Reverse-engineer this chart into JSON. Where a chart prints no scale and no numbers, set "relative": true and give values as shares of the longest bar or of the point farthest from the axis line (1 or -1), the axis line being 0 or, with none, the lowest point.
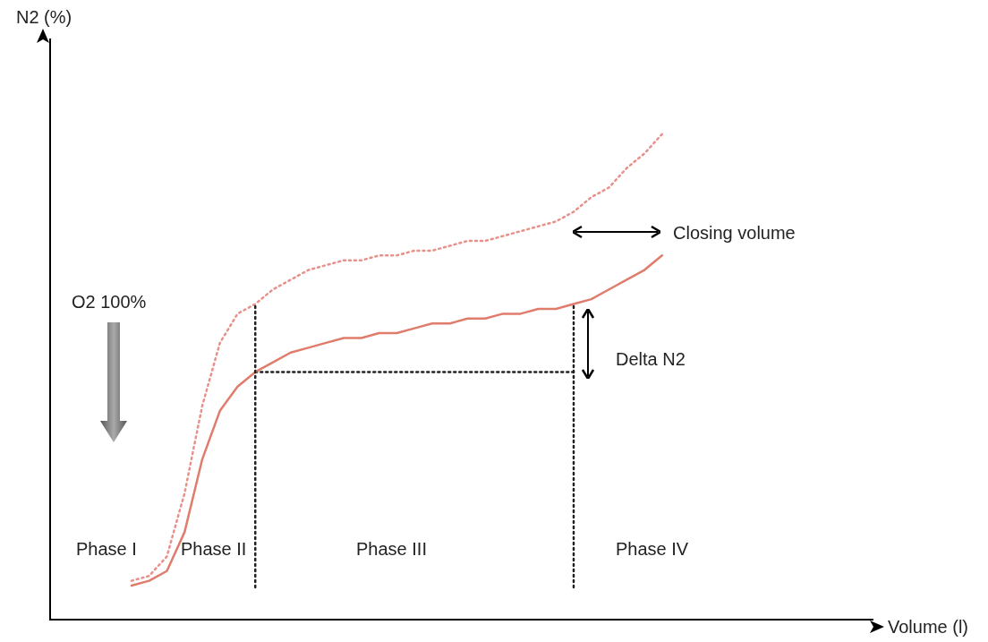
{
  "chart_data": {
    "type": "line",
    "relative": true,
    "marker": "none",
    "categories": [
      null,
      null,
      null,
      null,
      null,
      null,
      null,
      null,
      null,
      null,
      null,
      null,
      null,
      null,
      null,
      null,
      null,
      null,
      null,
      null,
      null,
      null,
      null,
      null,
      null,
      null,
      null,
      null,
      null,
      null,
      null
    ],
    "series": [
      {
        "color": "#e8908a",
        "line_style": "dotted",
        "values": [
          0.08,
          0.09,
          0.13,
          0.26,
          0.44,
          0.57,
          0.63,
          0.65,
          0.68,
          0.7,
          0.72,
          0.73,
          0.74,
          0.74,
          0.75,
          0.75,
          0.76,
          0.76,
          0.77,
          0.78,
          0.78,
          0.79,
          0.8,
          0.81,
          0.82,
          0.84,
          0.87,
          0.89,
          0.93,
          0.96,
          1
        ]
      },
      {
        "color": "#e07c6c",
        "line_style": "solid",
        "values": [
          0.07,
          0.08,
          0.1,
          0.18,
          0.33,
          0.43,
          0.48,
          0.51,
          0.53,
          0.55,
          0.56,
          0.57,
          0.58,
          0.58,
          0.59,
          0.59,
          0.6,
          0.61,
          0.61,
          0.62,
          0.62,
          0.63,
          0.63,
          0.64,
          0.64,
          0.65,
          0.66,
          0.68,
          0.7,
          0.72,
          0.75
        ]
      },
      {
        "color": "#222222",
        "line_style": "dotted",
        "values": [
          null,
          null,
          null,
          null,
          null,
          null,
          null,
          0.51,
          0.51,
          0.51,
          0.51,
          0.51,
          0.51,
          0.51,
          0.51,
          0.51,
          0.51,
          0.51,
          0.51,
          0.51,
          0.51,
          0.51,
          0.51,
          0.51,
          0.51,
          0.51,
          null,
          null,
          null,
          null,
          null
        ]
      }
    ],
    "annotations": [
      "O2 100%",
      "Phase I",
      "Phase II",
      "Phase III",
      "Phase IV",
      "Closing volume",
      "Delta N2",
      "N2 (%)",
      "Volume (l)"
    ]
  }
}
